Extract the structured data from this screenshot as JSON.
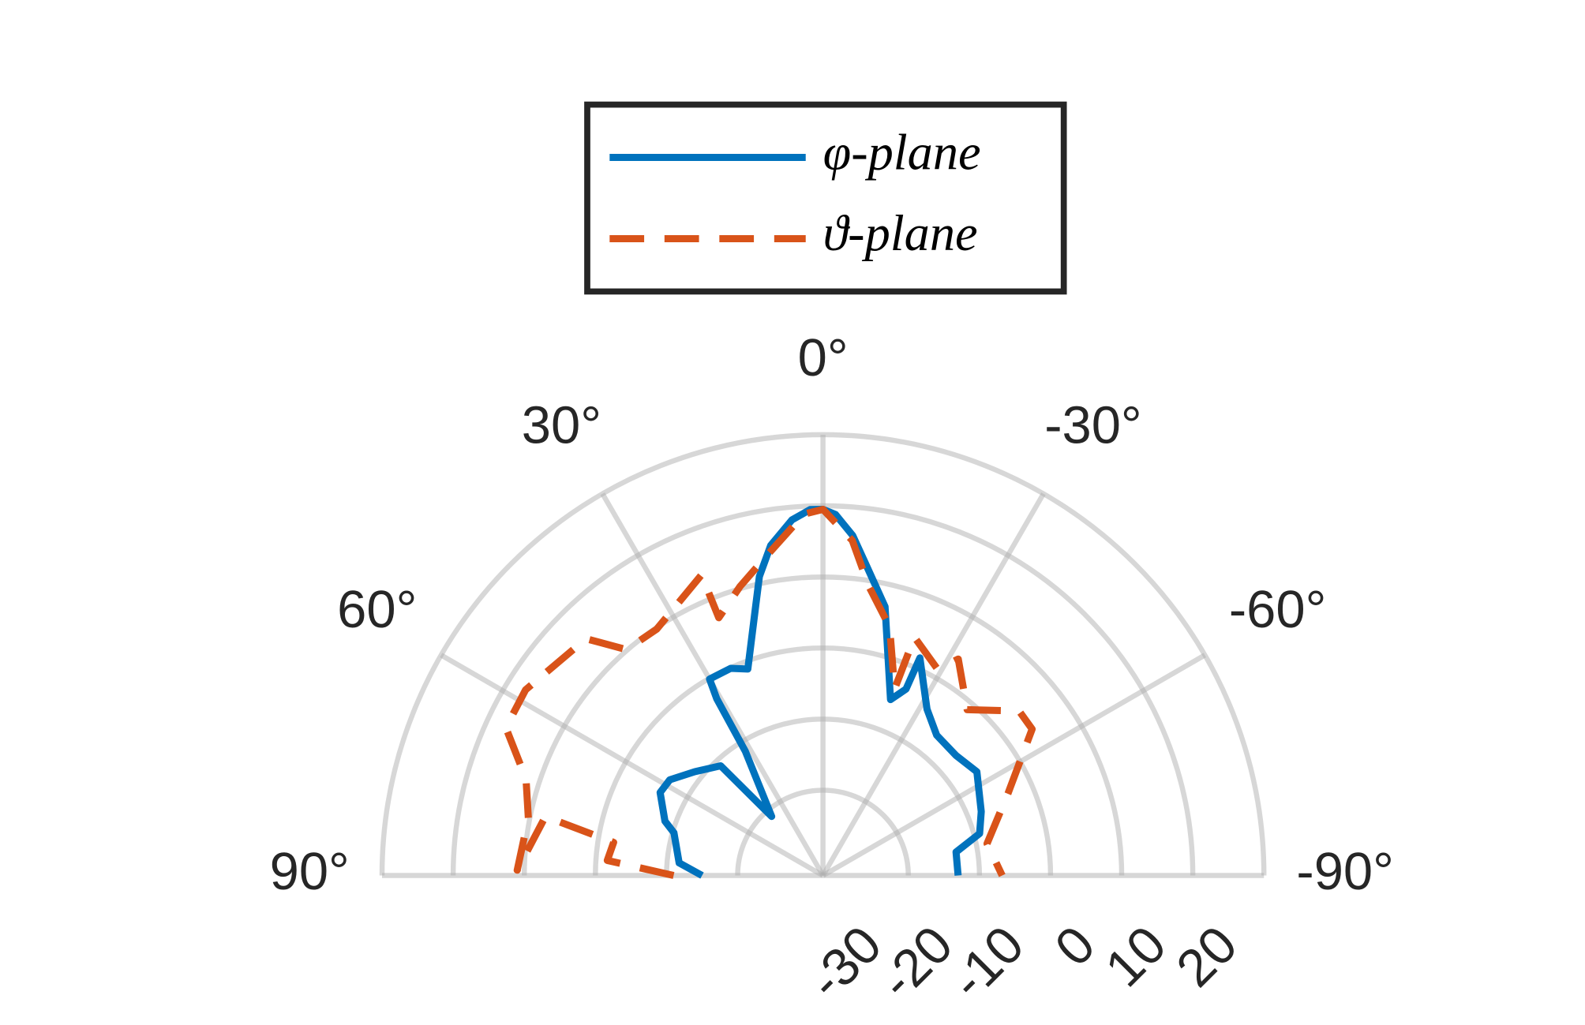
{
  "chart_data": {
    "type": "polar",
    "thetalim": [
      -90,
      90
    ],
    "thetaticks": [
      {
        "value": 90,
        "label": "90°"
      },
      {
        "value": 60,
        "label": "60°"
      },
      {
        "value": 30,
        "label": "30°"
      },
      {
        "value": 0,
        "label": "0°"
      },
      {
        "value": -30,
        "label": "-30°"
      },
      {
        "value": -60,
        "label": "-60°"
      },
      {
        "value": -90,
        "label": "-90°"
      }
    ],
    "rlim": [
      -42,
      20
    ],
    "rticks": [
      -30,
      -20,
      -10,
      0,
      10,
      20
    ],
    "grid": true,
    "legend": "north",
    "series": [
      {
        "name": "φ-plane",
        "color": "#0072bd",
        "style": "solid",
        "x": [
          90,
          85,
          74,
          71,
          63,
          58,
          51,
          43,
          41,
          32,
          31,
          30,
          24,
          20,
          14,
          12,
          9,
          5,
          2,
          0,
          -2,
          -5,
          -8,
          -13,
          -21,
          -24,
          -24,
          -32,
          -39,
          -48,
          -56,
          -68,
          -75,
          -80,
          -90
        ],
        "values": [
          -25,
          -21.7,
          -20.2,
          -18.5,
          -16.3,
          -16.6,
          -18.8,
          -20.9,
          -31,
          -21.4,
          -13,
          -10.1,
          -10.1,
          -11.1,
          -2.9,
          1,
          5,
          8.2,
          9.5,
          9.5,
          8.8,
          6,
          2,
          -3.2,
          -15.5,
          -13.3,
          -8.5,
          -14.4,
          -16.6,
          -16.8,
          -15.9,
          -18,
          -19.2,
          -23,
          -23
        ]
      },
      {
        "name": "ϑ-plane",
        "color": "#d95319",
        "style": "dashed",
        "x": [
          90,
          86,
          81,
          78,
          89,
          79,
          72,
          65,
          58,
          45,
          41,
          34,
          22,
          22,
          16,
          9,
          3,
          0,
          -5,
          -9,
          -15,
          -21,
          -21,
          -29,
          -32,
          -41,
          -50,
          -55,
          -66,
          -79,
          -90
        ],
        "values": [
          -21,
          -11.6,
          -12.2,
          -2.1,
          1,
          0.2,
          1.9,
          7.2,
          7.3,
          5.1,
          0.1,
          -0.2,
          3.6,
          -2.9,
          0.3,
          4.3,
          8.9,
          9.5,
          5.3,
          -0.8,
          -5.8,
          -13.9,
          -6.1,
          -8.8,
          -6.1,
          -11.1,
          -6,
          -6.1,
          -13.5,
          -18.5,
          -16.8
        ]
      }
    ]
  }
}
